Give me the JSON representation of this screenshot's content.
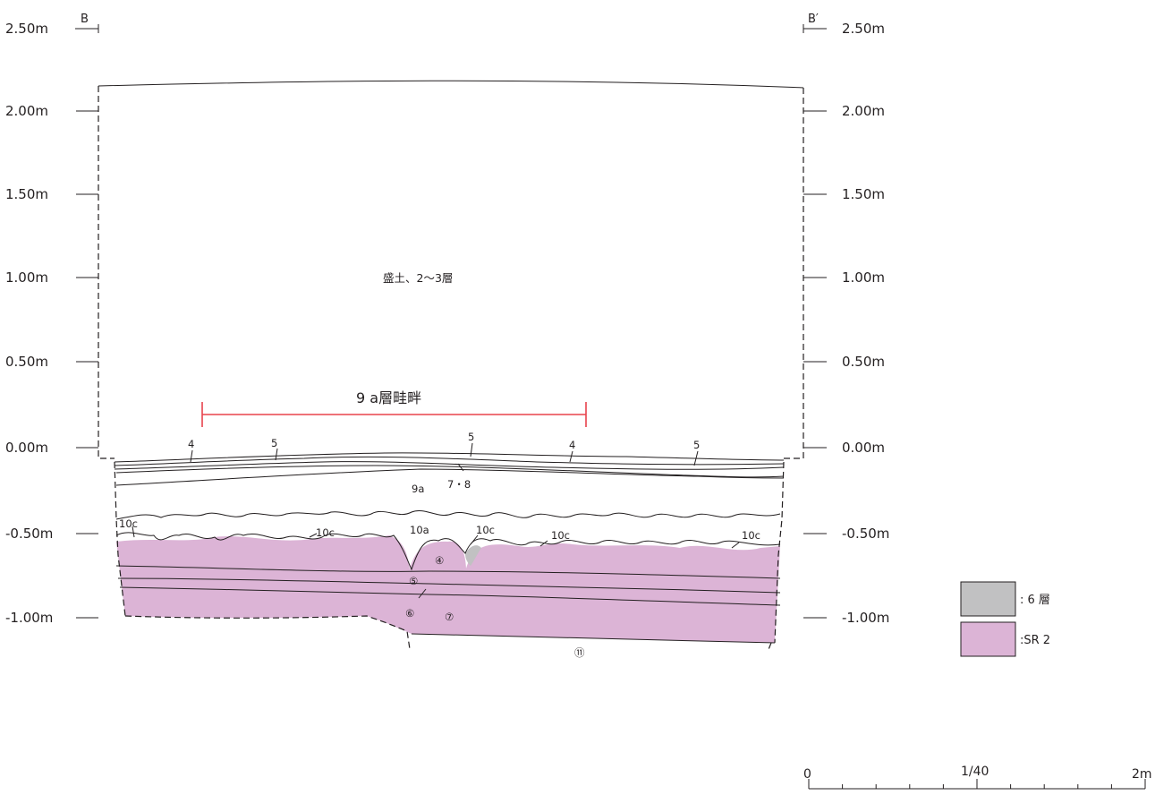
{
  "section": {
    "left_label": "B",
    "right_label": "B′"
  },
  "elevation_labels": [
    "2.50m",
    "2.00m",
    "1.50m",
    "1.00m",
    "0.50m",
    "0.00m",
    "-0.50m",
    "-1.00m"
  ],
  "fill_label": "盛土、2〜3層",
  "ridge": {
    "label": "9 a層畦畔",
    "color": "#e8434c"
  },
  "layer_labels": {
    "l4a": "4",
    "l5a": "5",
    "l5b": "5",
    "l4b": "4",
    "l5c": "5",
    "l78": "7・8",
    "l9a": "9a",
    "l10c1": "10c",
    "l10c2": "10c",
    "l10a": "10a",
    "l10c3": "10c",
    "l10c4": "10c",
    "l10c5": "10c",
    "c4": "④",
    "c5": "⑤",
    "c6": "⑥",
    "c7": "⑦",
    "c11": "⑪"
  },
  "legend": [
    {
      "label": ": 6 層",
      "color": "#c1c1c2"
    },
    {
      "label": ":SR 2",
      "color": "#dcb4d6"
    }
  ],
  "scale": {
    "ratio": "1/40",
    "start": "0",
    "end": "2m"
  }
}
